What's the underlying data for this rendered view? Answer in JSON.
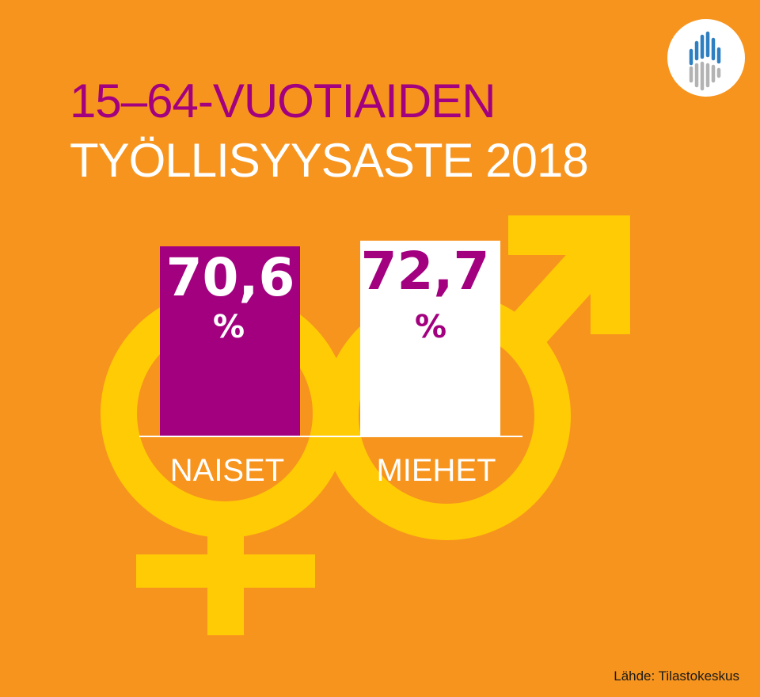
{
  "title": {
    "line1": "15–64-VUOTIAIDEN",
    "line2": "TYÖLLISYYSASTE 2018"
  },
  "source": "Lähde: Tilastokeskus",
  "colors": {
    "background": "#f7941d",
    "symbol": "#ffcb05",
    "women": "#a3007f",
    "men": "#ffffff",
    "title_accent": "#a3007f",
    "title_main": "#ffffff",
    "logo_blue": "#2e7fc1",
    "logo_gray": "#b3b3b3"
  },
  "icons": {
    "logo": "statistics-finland-logo-icon",
    "female": "female-symbol-icon",
    "male": "male-symbol-icon"
  },
  "chart_data": {
    "type": "bar",
    "title": "15–64-VUOTIAIDEN TYÖLLISYYSASTE 2018",
    "categories": [
      "NAISET",
      "MIEHET"
    ],
    "values": [
      70.6,
      72.7
    ],
    "value_labels": [
      "70,6",
      "72,7"
    ],
    "unit": "%",
    "baseline": 0,
    "grid": false,
    "legend": "none"
  }
}
